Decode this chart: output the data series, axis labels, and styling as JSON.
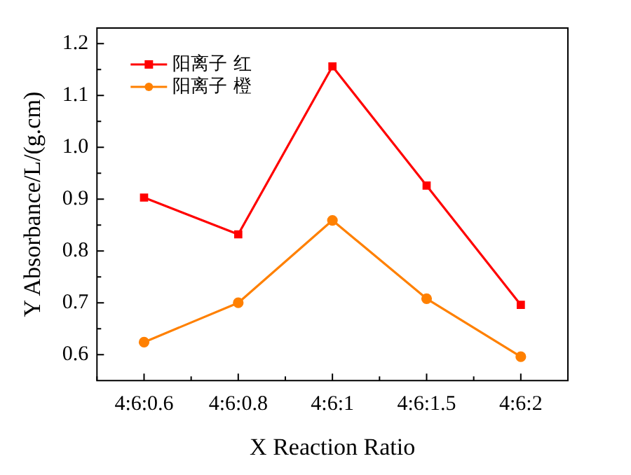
{
  "chart_data": {
    "type": "line",
    "xlabel": "X Reaction Ratio",
    "ylabel": "Y Absorbance/L/(g.cm)",
    "categories": [
      "4:6:0.6",
      "4:6:0.8",
      "4:6:1",
      "4:6:1.5",
      "4:6:2"
    ],
    "series": [
      {
        "name": "阳离子 红",
        "color": "#ff0000",
        "marker": "square",
        "values": [
          0.903,
          0.832,
          1.156,
          0.926,
          0.696
        ]
      },
      {
        "name": "阳离子 橙",
        "color": "#ff8000",
        "marker": "circle",
        "values": [
          0.624,
          0.7,
          0.859,
          0.708,
          0.596
        ]
      }
    ],
    "ylim": [
      0.55,
      1.23
    ],
    "yticks": [
      0.6,
      0.7,
      0.8,
      0.9,
      {
        "value": 1,
        "label": "1.0"
      },
      1.1,
      1.2
    ],
    "grid": false,
    "legend": "top left"
  }
}
